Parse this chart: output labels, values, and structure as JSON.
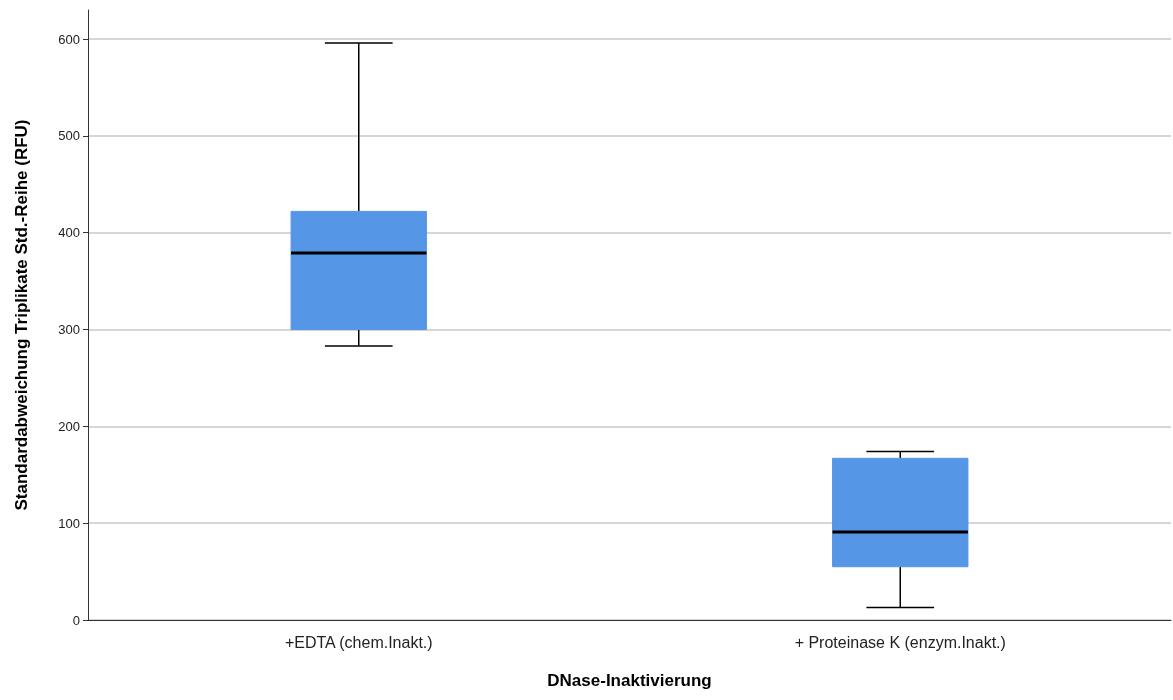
{
  "chart_data": {
    "type": "box",
    "xlabel": "DNase-Inaktivierung",
    "ylabel": "Standardabweichung Triplikate Std.-Reihe (RFU)",
    "categories": [
      "+EDTA (chem.Inakt.)",
      "+ Proteinase K (enzym.Inakt.)"
    ],
    "color": "#5596e6",
    "boxes": [
      {
        "low": 283,
        "q1": 300,
        "median": 379,
        "q3": 422,
        "high": 596
      },
      {
        "low": 13,
        "q1": 55,
        "median": 91,
        "q3": 167,
        "high": 174
      }
    ],
    "ylim": [
      0,
      630
    ],
    "yticks": [
      0,
      100,
      200,
      300,
      400,
      500,
      600
    ],
    "grid": "y"
  }
}
